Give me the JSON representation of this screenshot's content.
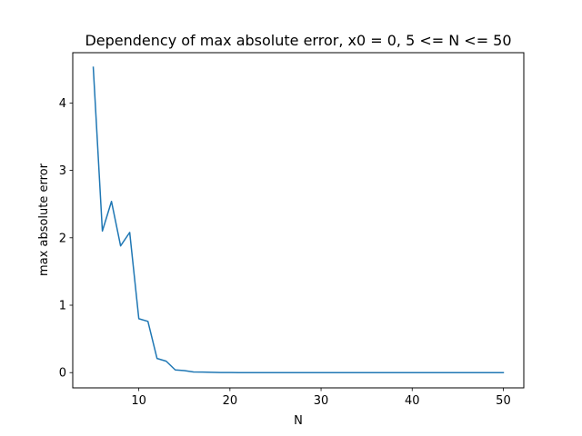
{
  "chart_data": {
    "type": "line",
    "title": "Dependency of max absolute error, x0 = 0, 5 <= N <= 50",
    "xlabel": "N",
    "ylabel": "max absolute error",
    "xlim": [
      2.75,
      52.25
    ],
    "ylim": [
      -0.226,
      4.746
    ],
    "xticks": [
      10,
      20,
      30,
      40,
      50
    ],
    "yticks": [
      0,
      1,
      2,
      3,
      4
    ],
    "grid": false,
    "series": [
      {
        "color": "#1f77b4",
        "x": [
          5,
          6,
          7,
          8,
          9,
          10,
          11,
          12,
          13,
          14,
          15,
          16,
          17,
          18,
          19,
          20,
          21,
          22,
          23,
          24,
          25,
          26,
          27,
          28,
          29,
          30,
          31,
          32,
          33,
          34,
          35,
          36,
          37,
          38,
          39,
          40,
          41,
          42,
          43,
          44,
          45,
          46,
          47,
          48,
          49,
          50
        ],
        "y": [
          4.53,
          2.1,
          2.54,
          1.88,
          2.08,
          0.8,
          0.76,
          0.21,
          0.17,
          0.04,
          0.03,
          0.01,
          0.008,
          0.004,
          0.002,
          0.001,
          0,
          0,
          0,
          0,
          0,
          0,
          0,
          0,
          0,
          0,
          0,
          0,
          0,
          0,
          0,
          0,
          0,
          0,
          0,
          0,
          0,
          0,
          0,
          0,
          0,
          0,
          0,
          0,
          0,
          0
        ]
      }
    ]
  }
}
